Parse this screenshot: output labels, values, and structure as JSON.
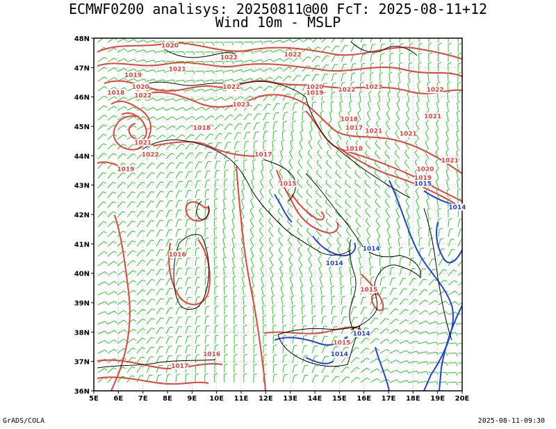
{
  "title": {
    "line1": "ECMWF0200 analisys: 20250811@00 FcT: 2025-08-11+12",
    "line2": "Wind 10m - MSLP"
  },
  "footer": {
    "left": "GrADS/COLA",
    "right": "2025-08-11-09:30"
  },
  "map": {
    "lon_labels": [
      "5E",
      "6E",
      "7E",
      "8E",
      "9E",
      "10E",
      "11E",
      "12E",
      "13E",
      "14E",
      "15E",
      "16E",
      "17E",
      "18E",
      "19E",
      "20E"
    ],
    "lat_labels": [
      "48N",
      "47N",
      "46N",
      "45N",
      "44N",
      "43N",
      "42N",
      "41N",
      "40N",
      "39N",
      "38N",
      "37N",
      "36N"
    ],
    "colors": {
      "isobar_high": "#e8403a",
      "isobar_low": "#2040e0",
      "wind": "#22cc22",
      "coast": "#000000"
    },
    "isobar_labels_red": [
      {
        "text": "1020",
        "lon": 8.1,
        "lat": 47.7
      },
      {
        "text": "1022",
        "lon": 10.5,
        "lat": 47.3
      },
      {
        "text": "1022",
        "lon": 13.1,
        "lat": 47.4
      },
      {
        "text": "1019",
        "lon": 6.6,
        "lat": 46.7
      },
      {
        "text": "1021",
        "lon": 8.4,
        "lat": 46.9
      },
      {
        "text": "1020",
        "lon": 6.9,
        "lat": 46.3
      },
      {
        "text": "1018",
        "lon": 5.9,
        "lat": 46.1
      },
      {
        "text": "1022",
        "lon": 7.0,
        "lat": 46.0
      },
      {
        "text": "1022",
        "lon": 10.6,
        "lat": 46.3
      },
      {
        "text": "1020",
        "lon": 14.0,
        "lat": 46.3
      },
      {
        "text": "1022",
        "lon": 15.3,
        "lat": 46.2
      },
      {
        "text": "1023",
        "lon": 16.4,
        "lat": 46.3
      },
      {
        "text": "1022",
        "lon": 18.9,
        "lat": 46.2
      },
      {
        "text": "1019",
        "lon": 14.0,
        "lat": 46.1
      },
      {
        "text": "1023",
        "lon": 11.0,
        "lat": 45.7
      },
      {
        "text": "1021",
        "lon": 18.8,
        "lat": 45.3
      },
      {
        "text": "1018",
        "lon": 9.4,
        "lat": 44.9
      },
      {
        "text": "1018",
        "lon": 15.4,
        "lat": 45.2
      },
      {
        "text": "1017",
        "lon": 15.6,
        "lat": 44.9
      },
      {
        "text": "1021",
        "lon": 16.4,
        "lat": 44.8
      },
      {
        "text": "1021",
        "lon": 17.8,
        "lat": 44.7
      },
      {
        "text": "1021",
        "lon": 7.0,
        "lat": 44.4
      },
      {
        "text": "1022",
        "lon": 7.3,
        "lat": 44.0
      },
      {
        "text": "1018",
        "lon": 15.6,
        "lat": 44.2
      },
      {
        "text": "1017",
        "lon": 11.9,
        "lat": 44.0
      },
      {
        "text": "1021",
        "lon": 19.5,
        "lat": 43.8
      },
      {
        "text": "1019",
        "lon": 6.3,
        "lat": 43.5
      },
      {
        "text": "1020",
        "lon": 18.5,
        "lat": 43.5
      },
      {
        "text": "1019",
        "lon": 18.4,
        "lat": 43.2
      },
      {
        "text": "1015",
        "lon": 12.9,
        "lat": 43.0
      },
      {
        "text": "1016",
        "lon": 8.4,
        "lat": 40.6
      },
      {
        "text": "1015",
        "lon": 16.2,
        "lat": 39.4
      },
      {
        "text": "1015",
        "lon": 15.1,
        "lat": 37.6
      },
      {
        "text": "1016",
        "lon": 9.8,
        "lat": 37.2
      },
      {
        "text": "1017",
        "lon": 8.5,
        "lat": 36.8
      }
    ],
    "isobar_labels_blue": [
      {
        "text": "1015",
        "lon": 18.4,
        "lat": 43.0
      },
      {
        "text": "1014",
        "lon": 19.8,
        "lat": 42.2
      },
      {
        "text": "1014",
        "lon": 16.3,
        "lat": 40.8
      },
      {
        "text": "1014",
        "lon": 14.8,
        "lat": 40.3
      },
      {
        "text": "1014",
        "lon": 15.9,
        "lat": 37.9
      },
      {
        "text": "1014",
        "lon": 15.0,
        "lat": 37.2
      }
    ]
  }
}
